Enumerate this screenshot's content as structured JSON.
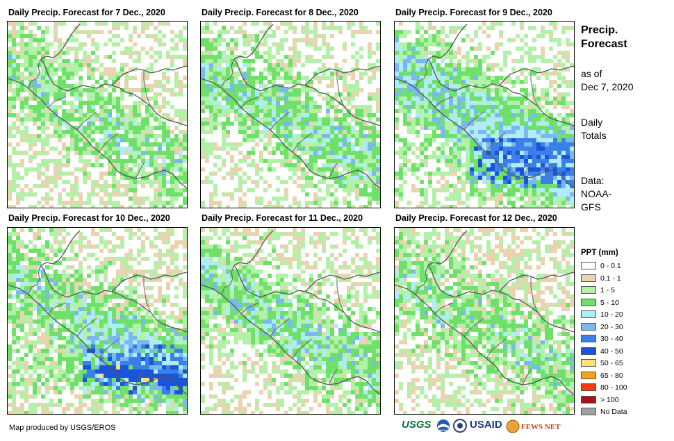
{
  "panels": [
    {
      "title": "Daily Precip. Forecast for 7 Dec., 2020"
    },
    {
      "title": "Daily Precip. Forecast for 8 Dec., 2020"
    },
    {
      "title": "Daily Precip. Forecast for 9 Dec., 2020"
    },
    {
      "title": "Daily Precip. Forecast for 10 Dec., 2020"
    },
    {
      "title": "Daily Precip. Forecast for 11 Dec., 2020"
    },
    {
      "title": "Daily Precip. Forecast for 12 Dec., 2020"
    }
  ],
  "side": {
    "title_line1": "Precip.",
    "title_line2": "Forecast",
    "asof_line1": "as of",
    "asof_line2": "Dec 7, 2020",
    "totals_line1": "Daily",
    "totals_line2": "Totals",
    "data_line1": "Data:",
    "data_line2": "NOAA-",
    "data_line3": "GFS"
  },
  "legend": {
    "title": "PPT (mm)",
    "items": [
      {
        "label": "0 - 0.1",
        "color": "#ffffff"
      },
      {
        "label": "0.1 - 1",
        "color": "#e9d3b0"
      },
      {
        "label": "1 - 5",
        "color": "#b3f0a8"
      },
      {
        "label": "5 - 10",
        "color": "#6fe06a"
      },
      {
        "label": "10 - 20",
        "color": "#b0ecf6"
      },
      {
        "label": "20 - 30",
        "color": "#7ab8f0"
      },
      {
        "label": "30 - 40",
        "color": "#3a80e8"
      },
      {
        "label": "40 - 50",
        "color": "#1c54d8"
      },
      {
        "label": "50 - 65",
        "color": "#fde07a"
      },
      {
        "label": "65 - 80",
        "color": "#f7a21a"
      },
      {
        "label": "80 - 100",
        "color": "#f03c10"
      },
      {
        "label": "> 100",
        "color": "#a31414"
      },
      {
        "label": "No Data",
        "color": "#a0a0a0"
      }
    ]
  },
  "footer": {
    "credit": "Map produced by USGS/EROS",
    "logos": [
      "USGS",
      "NOAA",
      "USAID",
      "FEWS NET"
    ]
  }
}
